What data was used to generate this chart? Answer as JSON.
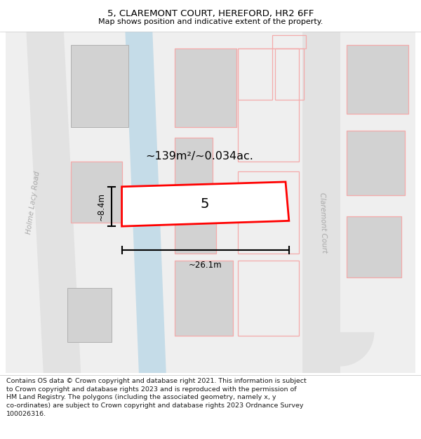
{
  "title": "5, CLAREMONT COURT, HEREFORD, HR2 6FF",
  "subtitle": "Map shows position and indicative extent of the property.",
  "footer": "Contains OS data © Crown copyright and database right 2021. This information is subject\nto Crown copyright and database rights 2023 and is reproduced with the permission of\nHM Land Registry. The polygons (including the associated geometry, namely x, y\nco-ordinates) are subject to Crown copyright and database rights 2023 Ordnance Survey\n100026316.",
  "area_text": "~139m²/~0.034ac.",
  "width_label": "~26.1m",
  "height_label": "~8.4m",
  "property_number": "5",
  "bg_color": "#f5f5f5",
  "road_color": "#ccdce8",
  "building_fill": "#d2d2d2",
  "building_stroke": "#b0b0b0",
  "plot_fill": "#ffffff",
  "plot_stroke": "#ff0000",
  "other_plot_stroke": "#f4aaaa",
  "street_label_color": "#aaaaaa",
  "text_color": "#000000",
  "title_fontsize": 9.5,
  "subtitle_fontsize": 8.0,
  "footer_fontsize": 6.8
}
